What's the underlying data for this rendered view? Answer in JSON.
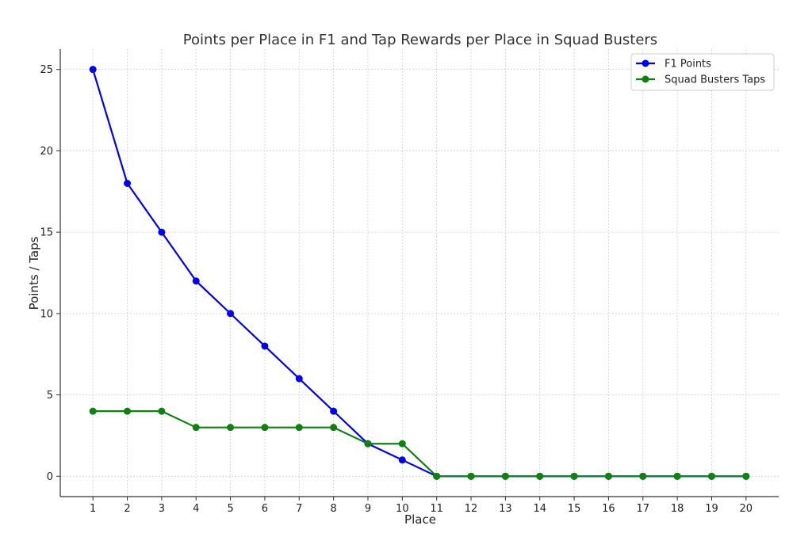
{
  "chart_data": {
    "type": "line",
    "title": "Points per Place in F1 and Tap Rewards per Place in Squad Busters",
    "xlabel": "Place",
    "ylabel": "Points / Taps",
    "x": [
      1,
      2,
      3,
      4,
      5,
      6,
      7,
      8,
      9,
      10,
      11,
      12,
      13,
      14,
      15,
      16,
      17,
      18,
      19,
      20
    ],
    "x_ticks": [
      "1",
      "2",
      "3",
      "4",
      "5",
      "6",
      "7",
      "8",
      "9",
      "10",
      "11",
      "12",
      "13",
      "14",
      "15",
      "16",
      "17",
      "18",
      "19",
      "20"
    ],
    "y_ticks": [
      "0",
      "5",
      "10",
      "15",
      "20",
      "25"
    ],
    "xlim": [
      0.05,
      20.95
    ],
    "ylim": [
      -1.25,
      26.25
    ],
    "grid": true,
    "legend_position": "top-right",
    "series": [
      {
        "name": "F1 Points",
        "color": "#0000ee",
        "marker": "circle",
        "values": [
          25,
          18,
          15,
          12,
          10,
          8,
          6,
          4,
          2,
          1,
          0,
          0,
          0,
          0,
          0,
          0,
          0,
          0,
          0,
          0
        ]
      },
      {
        "name": "Squad Busters Taps",
        "color": "#108010",
        "marker": "circle",
        "values": [
          4,
          4,
          4,
          3,
          3,
          3,
          3,
          3,
          2,
          2,
          0,
          0,
          0,
          0,
          0,
          0,
          0,
          0,
          0,
          0
        ]
      }
    ]
  }
}
